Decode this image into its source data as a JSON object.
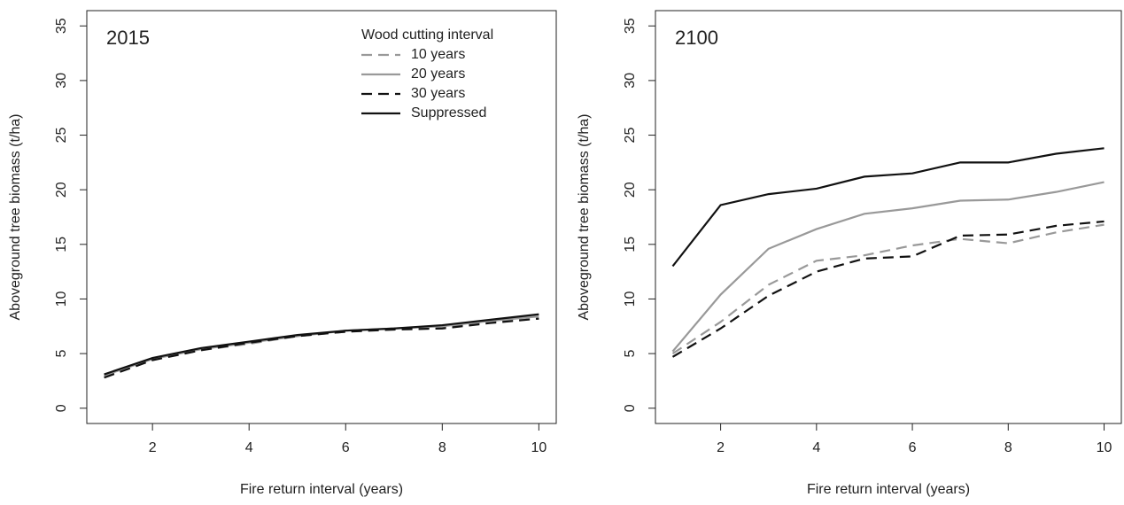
{
  "chart_data": [
    {
      "type": "line",
      "title": "2015",
      "x_label": "Fire return interval (years)",
      "y_label": "Aboveground tree biomass (t/ha)",
      "x": [
        1,
        2,
        3,
        4,
        5,
        6,
        7,
        8,
        9,
        10
      ],
      "xlim": [
        0.64,
        10.36
      ],
      "xticks": [
        2,
        4,
        6,
        8,
        10
      ],
      "ylim": [
        -1.4,
        36.4
      ],
      "yticks": [
        0,
        5,
        10,
        15,
        20,
        25,
        30,
        35
      ],
      "legend_title": "Wood cutting interval",
      "legend": "top-right",
      "series": [
        {
          "name": "10 years",
          "color": "#999999",
          "dashed": true,
          "values": [
            2.9,
            4.5,
            5.3,
            5.9,
            6.6,
            7.0,
            7.3,
            7.4,
            7.9,
            8.2
          ]
        },
        {
          "name": "20 years",
          "color": "#999999",
          "dashed": false,
          "values": [
            3.0,
            4.5,
            5.4,
            6.0,
            6.6,
            7.1,
            7.3,
            7.5,
            8.0,
            8.4
          ]
        },
        {
          "name": "30 years",
          "color": "#111111",
          "dashed": true,
          "values": [
            2.8,
            4.4,
            5.3,
            6.0,
            6.6,
            7.0,
            7.2,
            7.3,
            7.8,
            8.2
          ]
        },
        {
          "name": "Suppressed",
          "color": "#111111",
          "dashed": false,
          "values": [
            3.1,
            4.6,
            5.5,
            6.1,
            6.7,
            7.1,
            7.3,
            7.6,
            8.1,
            8.6
          ]
        }
      ]
    },
    {
      "type": "line",
      "title": "2100",
      "x_label": "Fire return interval (years)",
      "y_label": "Aboveground tree biomass (t/ha)",
      "x": [
        1,
        2,
        3,
        4,
        5,
        6,
        7,
        8,
        9,
        10
      ],
      "xlim": [
        0.64,
        10.36
      ],
      "xticks": [
        2,
        4,
        6,
        8,
        10
      ],
      "ylim": [
        -1.4,
        36.4
      ],
      "yticks": [
        0,
        5,
        10,
        15,
        20,
        25,
        30,
        35
      ],
      "series": [
        {
          "color": "#999999",
          "dashed": true,
          "values": [
            5.0,
            7.9,
            11.3,
            13.5,
            14.0,
            14.9,
            15.5,
            15.1,
            16.1,
            16.8
          ]
        },
        {
          "color": "#999999",
          "dashed": false,
          "values": [
            5.2,
            10.4,
            14.6,
            16.4,
            17.8,
            18.3,
            19.0,
            19.1,
            19.8,
            20.7
          ]
        },
        {
          "color": "#111111",
          "dashed": true,
          "values": [
            4.7,
            7.3,
            10.3,
            12.5,
            13.7,
            13.9,
            15.8,
            15.9,
            16.7,
            17.1
          ]
        },
        {
          "color": "#111111",
          "dashed": false,
          "values": [
            13.0,
            18.6,
            19.6,
            20.1,
            21.2,
            21.5,
            22.5,
            22.5,
            23.3,
            23.8
          ]
        }
      ]
    }
  ]
}
